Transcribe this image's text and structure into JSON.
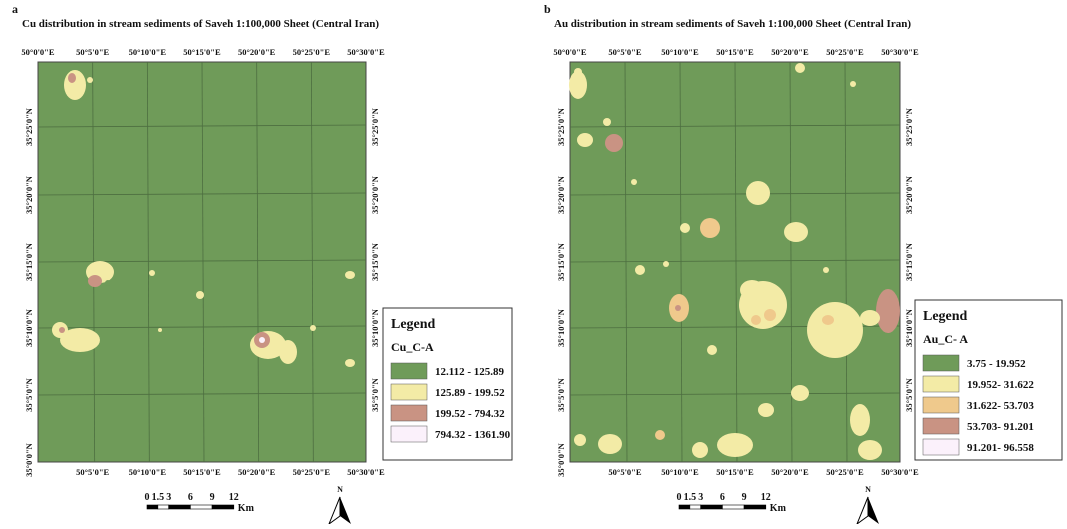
{
  "panels": [
    {
      "label": "a",
      "title": "Cu distribution in stream sediments of Saveh 1:100,000 Sheet (Central Iran)",
      "top_labels": [
        "50°0'0\"E",
        "50°5'0\"E",
        "50°10'0\"E",
        "50°15'0\"E",
        "50°20'0\"E",
        "50°25'0\"E",
        "50°30'0\"E"
      ],
      "bottom_labels": [
        "50°5'0\"E",
        "50°10'0\"E",
        "50°15'0\"E",
        "50°20'0\"E",
        "50°25'0\"E",
        "50°30'0\"E"
      ],
      "left_labels": [
        "35°25'0\"N",
        "35°20'0\"N",
        "35°15'0\"N",
        "35°10'0\"N",
        "35°5'0\"N",
        "35°0'0\"N"
      ],
      "right_labels": [
        "35°25'0\"N",
        "35°20'0\"N",
        "35°15'0\"N",
        "35°10'0\"N",
        "35°5'0\"N"
      ],
      "legend": {
        "title": "Legend",
        "field": "Cu_C-A",
        "classes": [
          {
            "label": "12.112 - 125.89",
            "color": "#6f9b59"
          },
          {
            "label": "125.89 - 199.52",
            "color": "#f3eba6"
          },
          {
            "label": "199.52 - 794.32",
            "color": "#c99383"
          },
          {
            "label": "794.32 - 1361.90",
            "color": "#fbf1fb"
          }
        ]
      },
      "scale": {
        "labels": [
          "0",
          "1.5",
          "3",
          "6",
          "9",
          "12"
        ],
        "unit": "Km"
      },
      "north": "N"
    },
    {
      "label": "b",
      "title": "Au distribution in stream sediments of Saveh 1:100,000 Sheet (Central Iran)",
      "top_labels": [
        "50°0'0\"E",
        "50°5'0\"E",
        "50°10'0\"E",
        "50°15'0\"E",
        "50°20'0\"E",
        "50°25'0\"E",
        "50°30'0\"E"
      ],
      "bottom_labels": [
        "50°5'0\"E",
        "50°10'0\"E",
        "50°15'0\"E",
        "50°20'0\"E",
        "50°25'0\"E",
        "50°30'0\"E"
      ],
      "left_labels": [
        "35°25'0\"N",
        "35°20'0\"N",
        "35°15'0\"N",
        "35°10'0\"N",
        "35°5'0\"N",
        "35°0'0\"N"
      ],
      "right_labels": [
        "35°25'0\"N",
        "35°20'0\"N",
        "35°15'0\"N",
        "35°10'0\"N",
        "35°5'0\"N"
      ],
      "legend": {
        "title": "Legend",
        "field": "Au_C- A",
        "classes": [
          {
            "label": "3.75 - 19.952",
            "color": "#6f9b59"
          },
          {
            "label": "19.952- 31.622",
            "color": "#f3eba6"
          },
          {
            "label": "31.622- 53.703",
            "color": "#efc98c"
          },
          {
            "label": "53.703- 91.201",
            "color": "#c99383"
          },
          {
            "label": "91.201- 96.558",
            "color": "#fbf1fb"
          }
        ]
      },
      "scale": {
        "labels": [
          "0",
          "1.5",
          "3",
          "6",
          "9",
          "12"
        ],
        "unit": "Km"
      },
      "north": "N"
    }
  ]
}
